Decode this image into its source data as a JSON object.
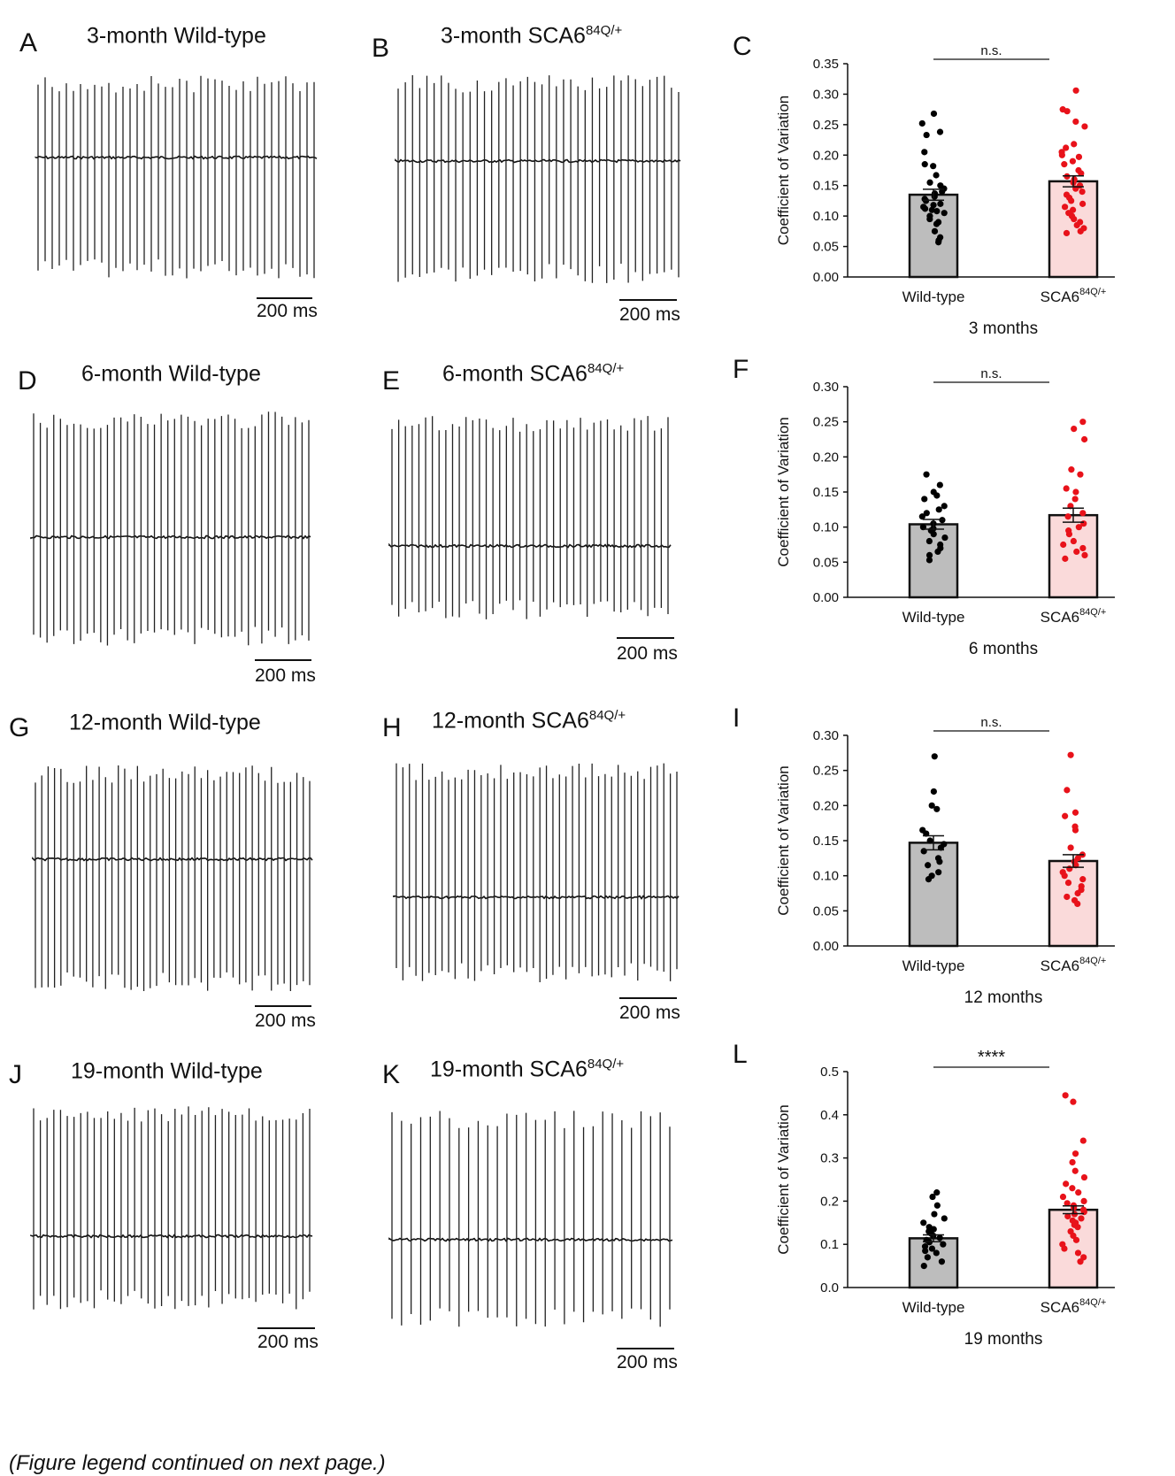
{
  "panels_traces": [
    {
      "letter": "A",
      "title": "3-month Wild-type",
      "sup": "",
      "scale": "200 ms"
    },
    {
      "letter": "B",
      "title": "3-month SCA6",
      "sup": "84Q/+",
      "scale": "200 ms"
    },
    {
      "letter": "D",
      "title": "6-month Wild-type",
      "sup": "",
      "scale": "200 ms"
    },
    {
      "letter": "E",
      "title": "6-month SCA6",
      "sup": "84Q/+",
      "scale": "200 ms"
    },
    {
      "letter": "G",
      "title": "12-month Wild-type",
      "sup": "",
      "scale": "200 ms"
    },
    {
      "letter": "H",
      "title": "12-month SCA6",
      "sup": "84Q/+",
      "scale": "200 ms"
    },
    {
      "letter": "J",
      "title": "19-month Wild-type",
      "sup": "",
      "scale": "200 ms"
    },
    {
      "letter": "K",
      "title": "19-month SCA6",
      "sup": "84Q/+",
      "scale": "200 ms"
    }
  ],
  "colors": {
    "wt_bar": "#bdbdbd",
    "sca_bar": "#fadada",
    "wt_points": "#000000",
    "sca_points": "#e8121a"
  },
  "chart_data": [
    {
      "type": "bar",
      "letter": "C",
      "ylabel": "Coefficient of Variation",
      "xlabel": "3 months",
      "categories": [
        "Wild-type",
        "SCA6"
      ],
      "cat_sup": [
        "",
        "84Q/+"
      ],
      "ylim": [
        0,
        0.35
      ],
      "ticks": [
        "0.00",
        "0.05",
        "0.10",
        "0.15",
        "0.20",
        "0.25",
        "0.30",
        "0.35"
      ],
      "means": [
        0.135,
        0.157
      ],
      "sem": [
        0.009,
        0.009
      ],
      "significance": "n.s.",
      "points": [
        [
          0.268,
          0.252,
          0.238,
          0.233,
          0.205,
          0.185,
          0.182,
          0.167,
          0.155,
          0.15,
          0.145,
          0.14,
          0.137,
          0.132,
          0.128,
          0.125,
          0.12,
          0.118,
          0.115,
          0.112,
          0.11,
          0.108,
          0.105,
          0.1,
          0.095,
          0.09,
          0.087,
          0.075,
          0.065,
          0.06,
          0.057
        ],
        [
          0.306,
          0.275,
          0.272,
          0.255,
          0.247,
          0.218,
          0.212,
          0.205,
          0.2,
          0.197,
          0.19,
          0.185,
          0.175,
          0.17,
          0.165,
          0.16,
          0.155,
          0.15,
          0.145,
          0.14,
          0.135,
          0.13,
          0.125,
          0.12,
          0.115,
          0.11,
          0.105,
          0.1,
          0.095,
          0.09,
          0.085,
          0.08,
          0.075,
          0.072
        ]
      ]
    },
    {
      "type": "bar",
      "letter": "F",
      "ylabel": "Coefficient of Variation",
      "xlabel": "6 months",
      "categories": [
        "Wild-type",
        "SCA6"
      ],
      "cat_sup": [
        "",
        "84Q/+"
      ],
      "ylim": [
        0,
        0.3
      ],
      "ticks": [
        "0.00",
        "0.05",
        "0.10",
        "0.15",
        "0.20",
        "0.25",
        "0.30"
      ],
      "means": [
        0.104,
        0.117
      ],
      "sem": [
        0.007,
        0.01
      ],
      "significance": "n.s.",
      "points": [
        [
          0.175,
          0.16,
          0.15,
          0.145,
          0.14,
          0.13,
          0.125,
          0.12,
          0.115,
          0.11,
          0.105,
          0.1,
          0.098,
          0.095,
          0.09,
          0.085,
          0.08,
          0.075,
          0.07,
          0.065,
          0.06,
          0.053
        ],
        [
          0.25,
          0.24,
          0.225,
          0.182,
          0.175,
          0.155,
          0.15,
          0.14,
          0.13,
          0.12,
          0.115,
          0.105,
          0.1,
          0.095,
          0.09,
          0.08,
          0.075,
          0.07,
          0.065,
          0.06,
          0.055
        ]
      ]
    },
    {
      "type": "bar",
      "letter": "I",
      "ylabel": "Coefficient of Variation",
      "xlabel": "12 months",
      "categories": [
        "Wild-type",
        "SCA6"
      ],
      "cat_sup": [
        "",
        "84Q/+"
      ],
      "ylim": [
        0,
        0.3
      ],
      "ticks": [
        "0.00",
        "0.05",
        "0.10",
        "0.15",
        "0.20",
        "0.25",
        "0.30"
      ],
      "means": [
        0.147,
        0.121
      ],
      "sem": [
        0.01,
        0.009
      ],
      "significance": "n.s.",
      "points": [
        [
          0.27,
          0.22,
          0.2,
          0.195,
          0.165,
          0.16,
          0.15,
          0.145,
          0.14,
          0.135,
          0.125,
          0.12,
          0.115,
          0.105,
          0.1,
          0.095
        ],
        [
          0.272,
          0.222,
          0.19,
          0.185,
          0.17,
          0.165,
          0.14,
          0.13,
          0.125,
          0.12,
          0.115,
          0.11,
          0.105,
          0.1,
          0.095,
          0.09,
          0.085,
          0.08,
          0.075,
          0.07,
          0.065,
          0.06
        ]
      ]
    },
    {
      "type": "bar",
      "letter": "L",
      "ylabel": "Coefficient of Variation",
      "xlabel": "19 months",
      "categories": [
        "Wild-type",
        "SCA6"
      ],
      "cat_sup": [
        "",
        "84Q/+"
      ],
      "ylim": [
        0,
        0.5
      ],
      "ticks": [
        "0.0",
        "0.1",
        "0.2",
        "0.3",
        "0.4",
        "0.5"
      ],
      "means": [
        0.114,
        0.18
      ],
      "sem": [
        0.008,
        0.009
      ],
      "significance": "****",
      "points": [
        [
          0.22,
          0.21,
          0.19,
          0.17,
          0.16,
          0.15,
          0.14,
          0.135,
          0.13,
          0.125,
          0.12,
          0.115,
          0.11,
          0.105,
          0.1,
          0.095,
          0.09,
          0.085,
          0.08,
          0.07,
          0.06,
          0.05
        ],
        [
          0.445,
          0.43,
          0.34,
          0.31,
          0.29,
          0.27,
          0.255,
          0.24,
          0.23,
          0.22,
          0.21,
          0.2,
          0.195,
          0.19,
          0.185,
          0.18,
          0.175,
          0.17,
          0.165,
          0.16,
          0.155,
          0.15,
          0.145,
          0.14,
          0.13,
          0.12,
          0.11,
          0.1,
          0.09,
          0.08,
          0.07,
          0.06
        ]
      ]
    }
  ],
  "footer": "(Figure legend continued on next page.)"
}
